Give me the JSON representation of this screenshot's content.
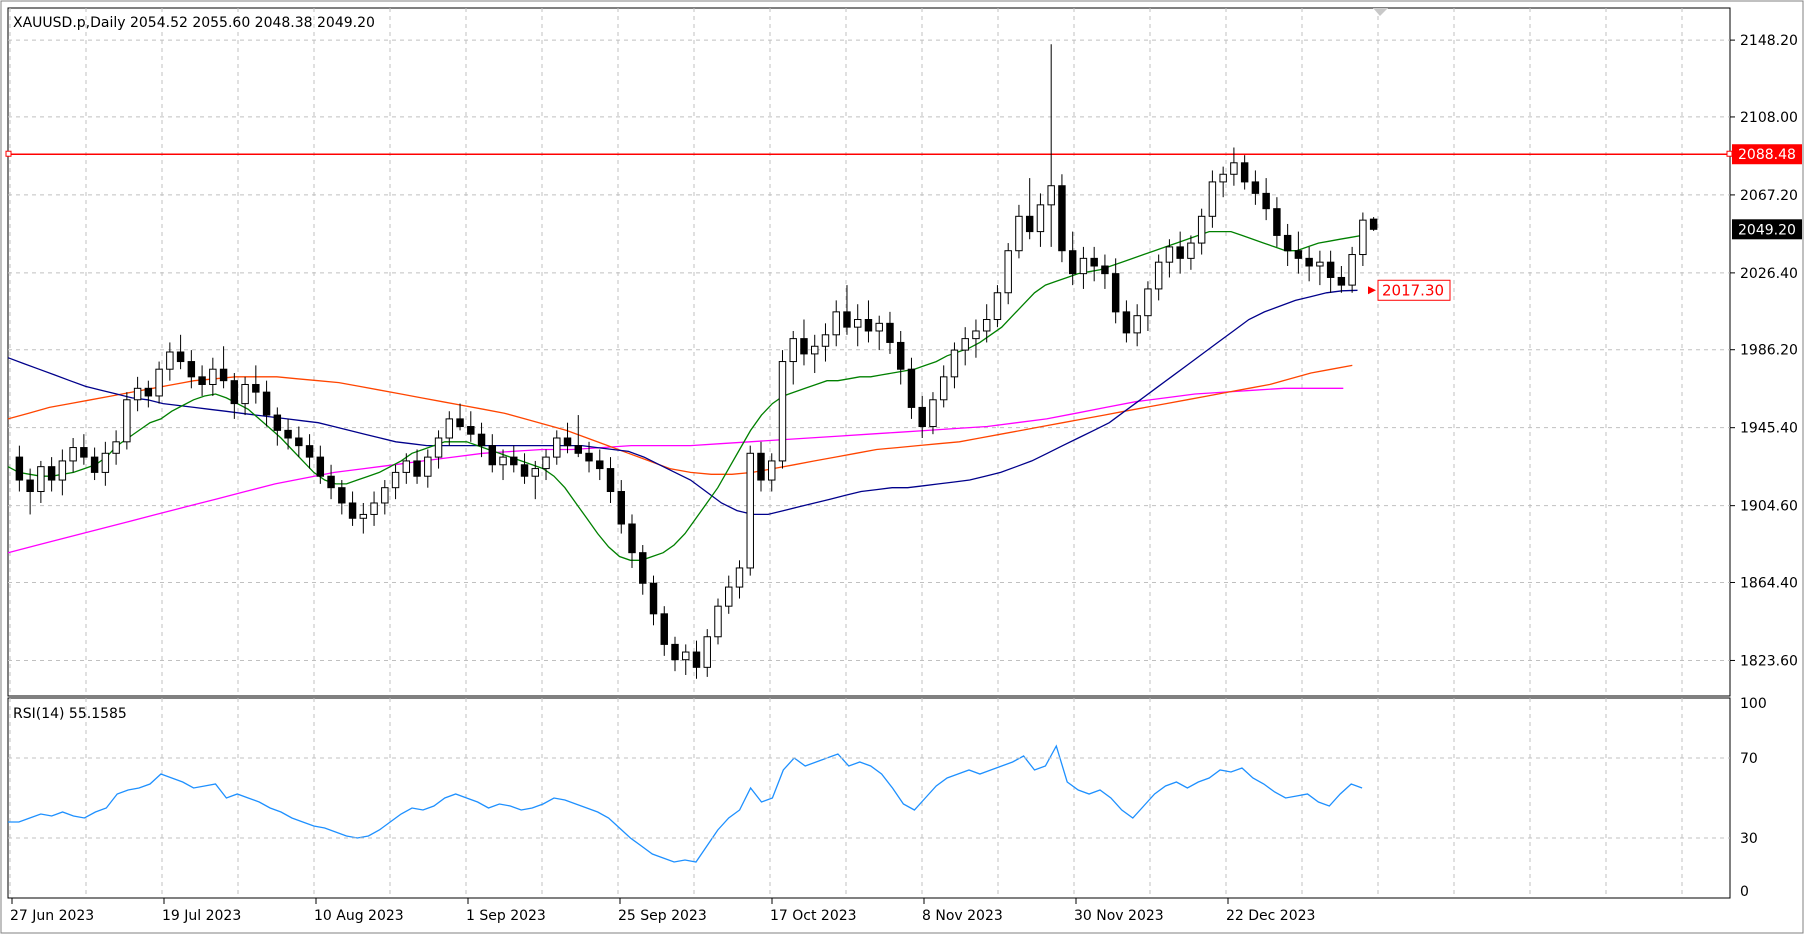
{
  "header": {
    "symbol_line": "XAUUSD.p,Daily  2054.52 2055.60 2048.38 2049.20"
  },
  "rsi": {
    "label": "RSI(14) 55.1585",
    "levels": [
      "100",
      "70",
      "30",
      "0"
    ]
  },
  "price_axis": {
    "ticks": [
      "2148.20",
      "2108.00",
      "2067.20",
      "2026.40",
      "1986.20",
      "1945.40",
      "1904.60",
      "1864.40",
      "1823.60"
    ],
    "current_price_label": "2049.20",
    "resistance_label": "2088.48",
    "ma_label": "2017.30"
  },
  "date_axis": {
    "labels": [
      "27 Jun 2023",
      "19 Jul 2023",
      "10 Aug 2023",
      "1 Sep 2023",
      "25 Sep 2023",
      "17 Oct 2023",
      "8 Nov 2023",
      "30 Nov 2023",
      "22 Dec 2023"
    ]
  },
  "colors": {
    "bull": "#ffffff",
    "bear": "#000000",
    "resistance": "#ff0000",
    "ma_green": "#008000",
    "ma_blue": "#00008b",
    "ma_orange": "#ff4500",
    "ma_magenta": "#ff00ff",
    "rsi_line": "#1e90ff",
    "grid": "#c0c0c0",
    "axis_label_bg_current": "#000000",
    "axis_label_bg_resistance": "#ff0000"
  },
  "chart_data": {
    "type": "candlestick",
    "title": "XAUUSD.p,Daily",
    "x_labels": [
      "27 Jun 2023",
      "19 Jul 2023",
      "10 Aug 2023",
      "1 Sep 2023",
      "25 Sep 2023",
      "17 Oct 2023",
      "8 Nov 2023",
      "30 Nov 2023",
      "22 Dec 2023"
    ],
    "ylim": [
      1805,
      2165
    ],
    "horizontal_line": 2088.48,
    "last_price": 2049.2,
    "candles": [
      [
        1930,
        1936,
        1912,
        1918
      ],
      [
        1918,
        1924,
        1900,
        1912
      ],
      [
        1912,
        1928,
        1906,
        1925
      ],
      [
        1925,
        1930,
        1912,
        1918
      ],
      [
        1918,
        1934,
        1910,
        1928
      ],
      [
        1928,
        1940,
        1922,
        1935
      ],
      [
        1935,
        1942,
        1926,
        1930
      ],
      [
        1930,
        1935,
        1918,
        1922
      ],
      [
        1922,
        1938,
        1915,
        1932
      ],
      [
        1932,
        1944,
        1926,
        1938
      ],
      [
        1938,
        1964,
        1934,
        1960
      ],
      [
        1960,
        1972,
        1954,
        1966
      ],
      [
        1966,
        1970,
        1956,
        1962
      ],
      [
        1962,
        1980,
        1958,
        1976
      ],
      [
        1976,
        1990,
        1970,
        1985
      ],
      [
        1985,
        1994,
        1976,
        1980
      ],
      [
        1980,
        1986,
        1966,
        1972
      ],
      [
        1972,
        1978,
        1962,
        1968
      ],
      [
        1968,
        1982,
        1962,
        1976
      ],
      [
        1976,
        1988,
        1966,
        1970
      ],
      [
        1970,
        1974,
        1950,
        1958
      ],
      [
        1958,
        1972,
        1952,
        1968
      ],
      [
        1968,
        1978,
        1958,
        1964
      ],
      [
        1964,
        1970,
        1946,
        1952
      ],
      [
        1952,
        1956,
        1936,
        1944
      ],
      [
        1944,
        1950,
        1934,
        1940
      ],
      [
        1940,
        1946,
        1930,
        1936
      ],
      [
        1936,
        1942,
        1924,
        1930
      ],
      [
        1930,
        1936,
        1916,
        1920
      ],
      [
        1920,
        1926,
        1908,
        1914
      ],
      [
        1914,
        1918,
        1900,
        1906
      ],
      [
        1906,
        1912,
        1894,
        1898
      ],
      [
        1898,
        1906,
        1890,
        1900
      ],
      [
        1900,
        1912,
        1894,
        1906
      ],
      [
        1906,
        1918,
        1900,
        1914
      ],
      [
        1914,
        1926,
        1908,
        1922
      ],
      [
        1922,
        1932,
        1916,
        1928
      ],
      [
        1928,
        1934,
        1916,
        1920
      ],
      [
        1920,
        1934,
        1914,
        1930
      ],
      [
        1930,
        1944,
        1924,
        1940
      ],
      [
        1940,
        1954,
        1936,
        1950
      ],
      [
        1950,
        1958,
        1944,
        1946
      ],
      [
        1946,
        1954,
        1938,
        1942
      ],
      [
        1942,
        1948,
        1930,
        1936
      ],
      [
        1936,
        1942,
        1922,
        1926
      ],
      [
        1926,
        1934,
        1918,
        1930
      ],
      [
        1930,
        1936,
        1922,
        1926
      ],
      [
        1926,
        1932,
        1916,
        1920
      ],
      [
        1920,
        1928,
        1908,
        1924
      ],
      [
        1924,
        1934,
        1918,
        1930
      ],
      [
        1930,
        1944,
        1926,
        1940
      ],
      [
        1940,
        1948,
        1932,
        1936
      ],
      [
        1936,
        1952,
        1930,
        1932
      ],
      [
        1932,
        1938,
        1922,
        1928
      ],
      [
        1928,
        1934,
        1918,
        1924
      ],
      [
        1924,
        1930,
        1906,
        1912
      ],
      [
        1912,
        1918,
        1890,
        1895
      ],
      [
        1895,
        1900,
        1872,
        1880
      ],
      [
        1880,
        1884,
        1858,
        1864
      ],
      [
        1864,
        1868,
        1842,
        1848
      ],
      [
        1848,
        1852,
        1826,
        1832
      ],
      [
        1832,
        1836,
        1818,
        1824
      ],
      [
        1824,
        1832,
        1816,
        1828
      ],
      [
        1828,
        1834,
        1814,
        1820
      ],
      [
        1820,
        1840,
        1815,
        1836
      ],
      [
        1836,
        1856,
        1832,
        1852
      ],
      [
        1852,
        1868,
        1848,
        1862
      ],
      [
        1862,
        1876,
        1856,
        1872
      ],
      [
        1872,
        1936,
        1868,
        1932
      ],
      [
        1932,
        1938,
        1912,
        1918
      ],
      [
        1918,
        1932,
        1912,
        1928
      ],
      [
        1928,
        1986,
        1924,
        1980
      ],
      [
        1980,
        1996,
        1968,
        1992
      ],
      [
        1992,
        2002,
        1978,
        1984
      ],
      [
        1984,
        1994,
        1974,
        1988
      ],
      [
        1988,
        2000,
        1980,
        1994
      ],
      [
        1994,
        2012,
        1988,
        2006
      ],
      [
        2006,
        2020,
        1994,
        1998
      ],
      [
        1998,
        2010,
        1988,
        2002
      ],
      [
        2002,
        2012,
        1990,
        1996
      ],
      [
        1996,
        2004,
        1986,
        2000
      ],
      [
        2000,
        2006,
        1984,
        1990
      ],
      [
        1990,
        1996,
        1968,
        1976
      ],
      [
        1976,
        1982,
        1950,
        1956
      ],
      [
        1956,
        1962,
        1940,
        1946
      ],
      [
        1946,
        1964,
        1942,
        1960
      ],
      [
        1960,
        1978,
        1956,
        1972
      ],
      [
        1972,
        1990,
        1966,
        1986
      ],
      [
        1986,
        1998,
        1978,
        1992
      ],
      [
        1992,
        2002,
        1982,
        1996
      ],
      [
        1996,
        2010,
        1990,
        2002
      ],
      [
        2002,
        2020,
        1998,
        2016
      ],
      [
        2016,
        2042,
        2010,
        2038
      ],
      [
        2038,
        2062,
        2034,
        2056
      ],
      [
        2056,
        2076,
        2044,
        2048
      ],
      [
        2048,
        2068,
        2040,
        2062
      ],
      [
        2062,
        2146,
        2040,
        2072
      ],
      [
        2072,
        2078,
        2032,
        2038
      ],
      [
        2038,
        2048,
        2020,
        2026
      ],
      [
        2026,
        2040,
        2018,
        2034
      ],
      [
        2034,
        2040,
        2022,
        2030
      ],
      [
        2030,
        2036,
        2018,
        2026
      ],
      [
        2026,
        2034,
        2000,
        2006
      ],
      [
        2006,
        2012,
        1990,
        1995
      ],
      [
        1995,
        2010,
        1988,
        2004
      ],
      [
        2004,
        2022,
        1996,
        2018
      ],
      [
        2018,
        2036,
        2012,
        2032
      ],
      [
        2032,
        2044,
        2024,
        2040
      ],
      [
        2040,
        2048,
        2026,
        2034
      ],
      [
        2034,
        2046,
        2028,
        2042
      ],
      [
        2042,
        2060,
        2036,
        2056
      ],
      [
        2056,
        2080,
        2050,
        2074
      ],
      [
        2074,
        2082,
        2066,
        2078
      ],
      [
        2078,
        2092,
        2072,
        2084
      ],
      [
        2084,
        2088,
        2070,
        2074
      ],
      [
        2074,
        2080,
        2062,
        2068
      ],
      [
        2068,
        2076,
        2054,
        2060
      ],
      [
        2060,
        2066,
        2040,
        2046
      ],
      [
        2046,
        2052,
        2030,
        2038
      ],
      [
        2038,
        2048,
        2026,
        2034
      ],
      [
        2034,
        2040,
        2022,
        2030
      ],
      [
        2030,
        2038,
        2020,
        2032
      ],
      [
        2032,
        2038,
        2016,
        2024
      ],
      [
        2024,
        2030,
        2016,
        2020
      ],
      [
        2020,
        2040,
        2016,
        2036
      ],
      [
        2036,
        2058,
        2030,
        2054
      ],
      [
        2054.52,
        2055.6,
        2048.38,
        2049.2
      ]
    ],
    "rsi": [
      38,
      38,
      40,
      42,
      41,
      43,
      41,
      40,
      43,
      45,
      52,
      54,
      55,
      57,
      62,
      60,
      58,
      55,
      56,
      57,
      50,
      52,
      50,
      48,
      45,
      43,
      40,
      38,
      36,
      35,
      33,
      31,
      30,
      31,
      34,
      38,
      42,
      45,
      44,
      46,
      50,
      52,
      50,
      48,
      45,
      47,
      46,
      44,
      45,
      47,
      50,
      49,
      47,
      45,
      43,
      40,
      35,
      30,
      26,
      22,
      20,
      18,
      19,
      18,
      26,
      34,
      40,
      44,
      55,
      48,
      50,
      64,
      70,
      66,
      68,
      70,
      72,
      66,
      68,
      66,
      62,
      55,
      47,
      44,
      50,
      56,
      60,
      62,
      64,
      62,
      64,
      66,
      68,
      71,
      64,
      66,
      76,
      58,
      54,
      52,
      54,
      50,
      44,
      40,
      46,
      52,
      56,
      58,
      55,
      58,
      60,
      64,
      63,
      65,
      60,
      57,
      53,
      50,
      51,
      52,
      48,
      46,
      52,
      57,
      55
    ],
    "ma_green": [
      1925,
      1922,
      1921,
      1920,
      1920,
      1921,
      1922,
      1924,
      1926,
      1930,
      1936,
      1940,
      1944,
      1948,
      1950,
      1954,
      1957,
      1960,
      1962,
      1963,
      1961,
      1958,
      1955,
      1950,
      1945,
      1940,
      1934,
      1928,
      1922,
      1918,
      1916,
      1916,
      1918,
      1920,
      1922,
      1925,
      1928,
      1932,
      1934,
      1936,
      1938,
      1938,
      1938,
      1936,
      1934,
      1932,
      1930,
      1928,
      1926,
      1924,
      1920,
      1914,
      1906,
      1898,
      1890,
      1883,
      1878,
      1876,
      1876,
      1878,
      1880,
      1884,
      1890,
      1898,
      1906,
      1914,
      1924,
      1934,
      1944,
      1952,
      1958,
      1962,
      1964,
      1966,
      1968,
      1970,
      1970,
      1971,
      1972,
      1972,
      1973,
      1974,
      1975,
      1976,
      1978,
      1980,
      1983,
      1985,
      1987,
      1990,
      1994,
      1998,
      2004,
      2010,
      2016,
      2020,
      2022,
      2024,
      2026,
      2027,
      2028,
      2030,
      2032,
      2034,
      2036,
      2038,
      2040,
      2042,
      2044,
      2046,
      2048,
      2048,
      2048,
      2046,
      2044,
      2042,
      2040,
      2038,
      2038,
      2040,
      2042,
      2043,
      2044,
      2045,
      2046
    ],
    "ma_blue": [
      1982,
      1979,
      1976,
      1973,
      1970,
      1967,
      1965,
      1963,
      1961,
      1960,
      1958,
      1957,
      1956,
      1955,
      1954,
      1953,
      1952,
      1951,
      1950,
      1949,
      1948,
      1946,
      1944,
      1942,
      1940,
      1938,
      1937,
      1936,
      1936,
      1936,
      1936,
      1936,
      1936,
      1936,
      1936,
      1936,
      1936,
      1936,
      1935,
      1934,
      1933,
      1930,
      1926,
      1922,
      1918,
      1912,
      1906,
      1902,
      1900,
      1900,
      1902,
      1904,
      1906,
      1908,
      1910,
      1912,
      1913,
      1914,
      1914,
      1915,
      1916,
      1917,
      1918,
      1920,
      1922,
      1925,
      1928,
      1932,
      1936,
      1940,
      1944,
      1948,
      1954,
      1960,
      1966,
      1972,
      1978,
      1984,
      1990,
      1996,
      2002,
      2006,
      2009,
      2012,
      2014,
      2016,
      2017,
      2017.3
    ],
    "ma_orange": [
      1950,
      1953,
      1956,
      1958,
      1960,
      1962,
      1964,
      1966,
      1968,
      1970,
      1971,
      1972,
      1972,
      1972,
      1971,
      1970,
      1969,
      1967,
      1965,
      1963,
      1961,
      1959,
      1957,
      1955,
      1953,
      1950,
      1947,
      1944,
      1940,
      1936,
      1932,
      1928,
      1924,
      1922,
      1921,
      1921,
      1922,
      1924,
      1926,
      1928,
      1930,
      1932,
      1934,
      1935,
      1936,
      1937,
      1938,
      1940,
      1942,
      1944,
      1946,
      1948,
      1950,
      1952,
      1954,
      1956,
      1958,
      1960,
      1962,
      1964,
      1966,
      1968,
      1971,
      1974,
      1976,
      1978
    ],
    "ma_magenta": [
      1880,
      1884,
      1888,
      1892,
      1896,
      1900,
      1904,
      1908,
      1912,
      1916,
      1919,
      1922,
      1924,
      1926,
      1928,
      1930,
      1932,
      1933,
      1934,
      1934,
      1935,
      1936,
      1936,
      1936,
      1937,
      1938,
      1939,
      1940,
      1941,
      1942,
      1943,
      1944,
      1945,
      1946,
      1948,
      1950,
      1953,
      1956,
      1959,
      1961,
      1963,
      1964,
      1965,
      1966,
      1966,
      1966
    ]
  }
}
